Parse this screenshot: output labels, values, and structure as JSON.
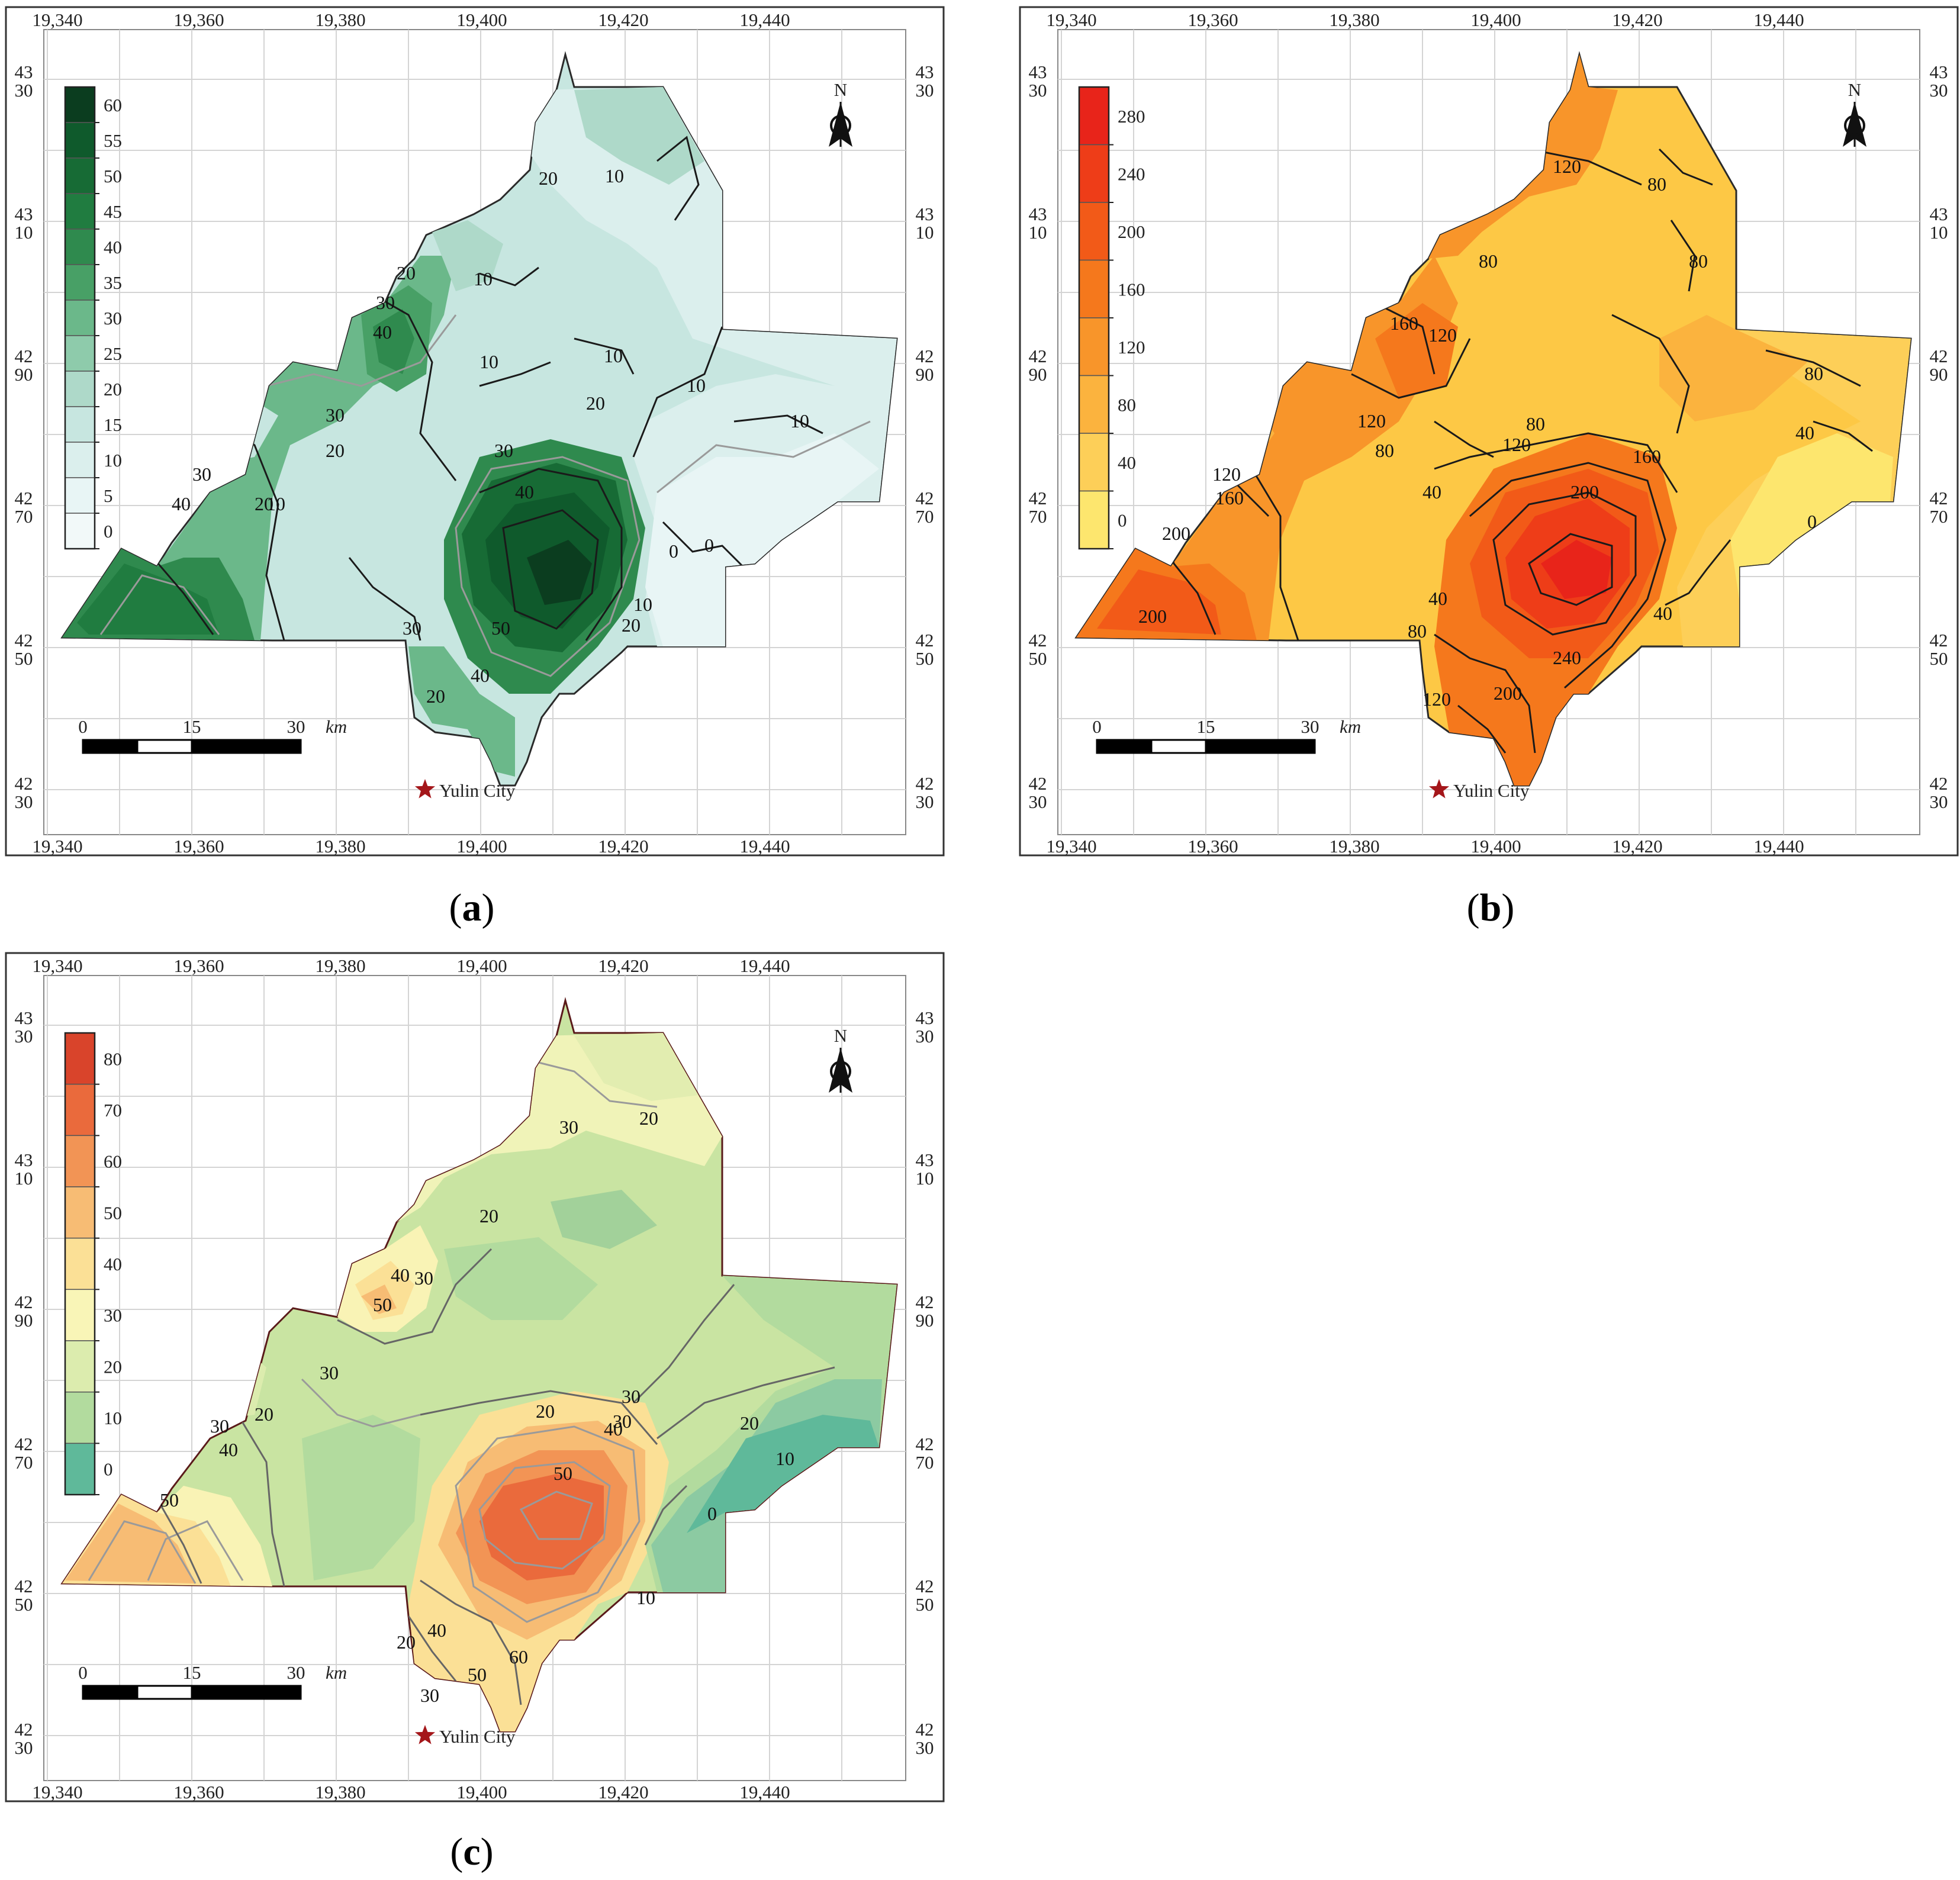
{
  "figure": {
    "coordinates": {
      "x_ticks": [
        "19,340",
        "19,360",
        "19,380",
        "19,400",
        "19,420",
        "19,440"
      ],
      "y_ticks": [
        {
          "top": "43",
          "bottom": "30"
        },
        {
          "top": "43",
          "bottom": "10"
        },
        {
          "top": "42",
          "bottom": "90"
        },
        {
          "top": "42",
          "bottom": "70"
        },
        {
          "top": "42",
          "bottom": "50"
        },
        {
          "top": "42",
          "bottom": "30"
        }
      ]
    },
    "north_label": "N",
    "scale_bar": {
      "ticks": [
        "0",
        "15",
        "30"
      ],
      "unit": "km"
    },
    "city_label": "Yulin City",
    "panels": [
      {
        "id": "a",
        "label": "a",
        "colormap": "green",
        "legend_labels": [
          "60",
          "55",
          "50",
          "45",
          "40",
          "35",
          "30",
          "25",
          "20",
          "15",
          "10",
          "5",
          "0"
        ],
        "legend_colors": [
          "#0b3d1f",
          "#0f5a2c",
          "#176b35",
          "#207c40",
          "#2f8a4e",
          "#48a066",
          "#6bb88a",
          "#8ecbab",
          "#aed9c9",
          "#c7e6e0",
          "#dbefed",
          "#e8f5f5",
          "#f2f9f9"
        ],
        "contour_labels": [
          "10",
          "20",
          "10",
          "10",
          "10",
          "20",
          "30",
          "40",
          "30",
          "20",
          "30",
          "40",
          "20",
          "10",
          "20",
          "10",
          "30",
          "40",
          "10",
          "0",
          "0",
          "10",
          "20",
          "40",
          "50",
          "20",
          "30"
        ]
      },
      {
        "id": "b",
        "label": "b",
        "colormap": "orange",
        "legend_labels": [
          "280",
          "240",
          "200",
          "160",
          "120",
          "80",
          "40",
          "0"
        ],
        "legend_colors": [
          "#e8241a",
          "#ee3d18",
          "#f25a18",
          "#f5781c",
          "#f8952a",
          "#fbb33e",
          "#fdcf58",
          "#fde66e"
        ],
        "contour_labels": [
          "120",
          "80",
          "80",
          "80",
          "160",
          "120",
          "120",
          "80",
          "120",
          "160",
          "200",
          "80",
          "40",
          "120",
          "160",
          "200",
          "200",
          "40",
          "80",
          "120",
          "240",
          "200",
          "40",
          "40",
          "80",
          "0"
        ]
      },
      {
        "id": "c",
        "label": "c",
        "colormap": "spectral",
        "legend_labels": [
          "80",
          "70",
          "60",
          "50",
          "40",
          "30",
          "20",
          "10",
          "0"
        ],
        "legend_colors": [
          "#d9442b",
          "#ea6a3c",
          "#f29455",
          "#f7bc74",
          "#fbe096",
          "#f9f5b7",
          "#dcecae",
          "#b2db9e",
          "#5fb99a"
        ],
        "contour_labels": [
          "30",
          "20",
          "20",
          "30",
          "40",
          "50",
          "20",
          "30",
          "30",
          "20",
          "50",
          "30",
          "40",
          "20",
          "10",
          "30",
          "40",
          "50",
          "0",
          "20",
          "40",
          "50",
          "60",
          "30",
          "10"
        ]
      }
    ]
  }
}
